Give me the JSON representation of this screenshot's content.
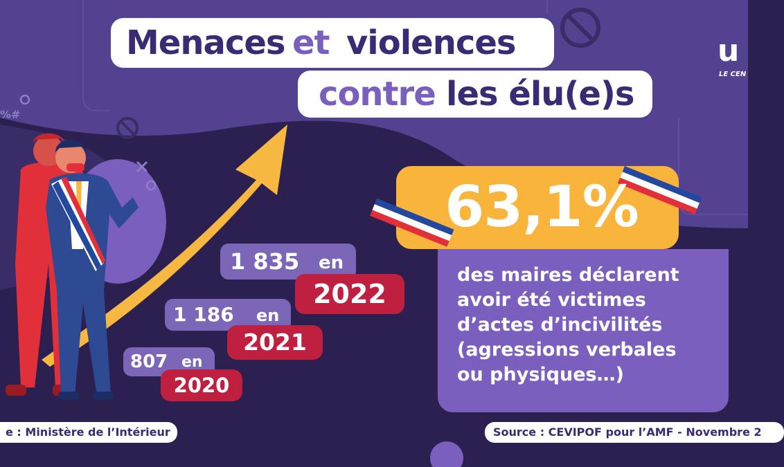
{
  "title": {
    "line1_part1": "Menaces",
    "line1_part2": "et",
    "line1_part3": "violences",
    "line2_part1": "contre",
    "line2_part2": "les élu(e)s"
  },
  "stats": [
    {
      "count": "1 835",
      "connector": "en",
      "year": "2022"
    },
    {
      "count": "1 186",
      "connector": "en",
      "year": "2021"
    },
    {
      "count": "807",
      "connector": "en",
      "year": "2020"
    }
  ],
  "highlight": {
    "percentage": "63,1%",
    "lines": [
      "des maires déclarent",
      "avoir été victimes",
      "d’actes d’incivilités",
      "(agressions verbales",
      "ou physiques…)"
    ]
  },
  "sources": {
    "left": "e : Ministère de l’Intérieur",
    "right": "Source : CEVIPOF pour l’AMF - Novembre 2"
  },
  "logo": {
    "mark": "u",
    "subtitle": "LE CEN"
  },
  "decor": {
    "glyph": "%#"
  },
  "colors": {
    "background": "#2b2050",
    "title_dark": "#3b2b74",
    "title_light": "#7a5fbe",
    "pill_purple": "#7c66b8",
    "year_red": "#c0203f",
    "highlight_yellow": "#f9b43c",
    "arrow_yellow": "#f6b840"
  }
}
